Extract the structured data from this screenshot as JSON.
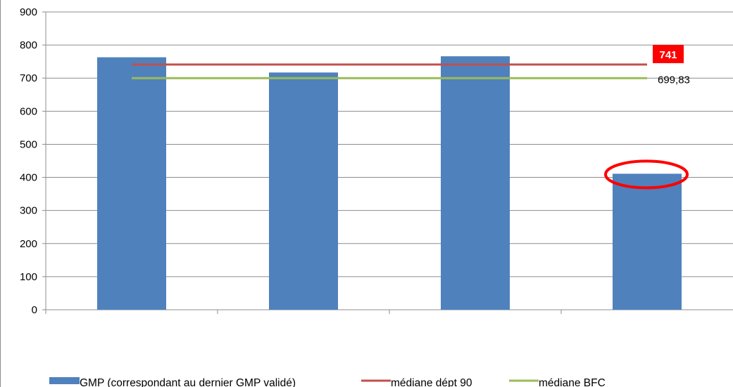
{
  "chart_data": {
    "type": "bar",
    "title": "",
    "xlabel": "",
    "ylabel": "",
    "ylim": [
      0,
      900
    ],
    "yticks": [
      0,
      100,
      200,
      300,
      400,
      500,
      600,
      700,
      800,
      900
    ],
    "ytick_labels": [
      "0",
      "100",
      "200",
      "300",
      "400",
      "500",
      "600",
      "700",
      "800",
      "900"
    ],
    "categories": [
      "",
      "",
      "",
      ""
    ],
    "grid": true,
    "legend_position": "bottom",
    "series": [
      {
        "name": "GMP (correspondant au dernier GMP validé)",
        "kind": "bar",
        "color": "#4f81bd",
        "values": [
          763,
          717,
          766,
          411
        ]
      },
      {
        "name": "médiane dépt 90",
        "kind": "line",
        "color": "#c0504d",
        "value": 741,
        "data_label": "741",
        "data_label_color": "#ff0000"
      },
      {
        "name": "médiane BFC",
        "kind": "line",
        "color": "#9bbb59",
        "value": 699.83,
        "data_label": "699,83"
      }
    ],
    "annotations": [
      {
        "type": "ellipse-highlight",
        "color": "#ff0000",
        "category_index": 3,
        "value": 411
      }
    ]
  }
}
